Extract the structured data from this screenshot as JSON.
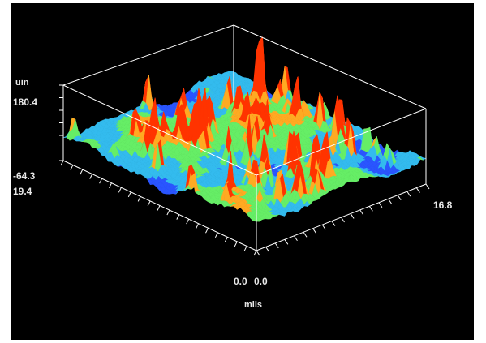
{
  "chart_data": {
    "type": "surface",
    "title": "",
    "z_unit": "uin",
    "x_unit": "mils",
    "z_range": [
      -64.3,
      180.4
    ],
    "x_range": [
      0.0,
      19.4
    ],
    "y_range": [
      0.0,
      16.8
    ],
    "tick_labels": {
      "z_max": "180.4",
      "z_min": "-64.3",
      "x_far": "19.4",
      "x_origin": "0.0",
      "y_origin": "0.0",
      "y_far": "16.8"
    },
    "colormap": [
      "#2a55ff",
      "#33bbee",
      "#66ee66",
      "#ffaa22",
      "#ff3300"
    ],
    "background_color": "#000000",
    "frame_color": "#ffffff"
  }
}
